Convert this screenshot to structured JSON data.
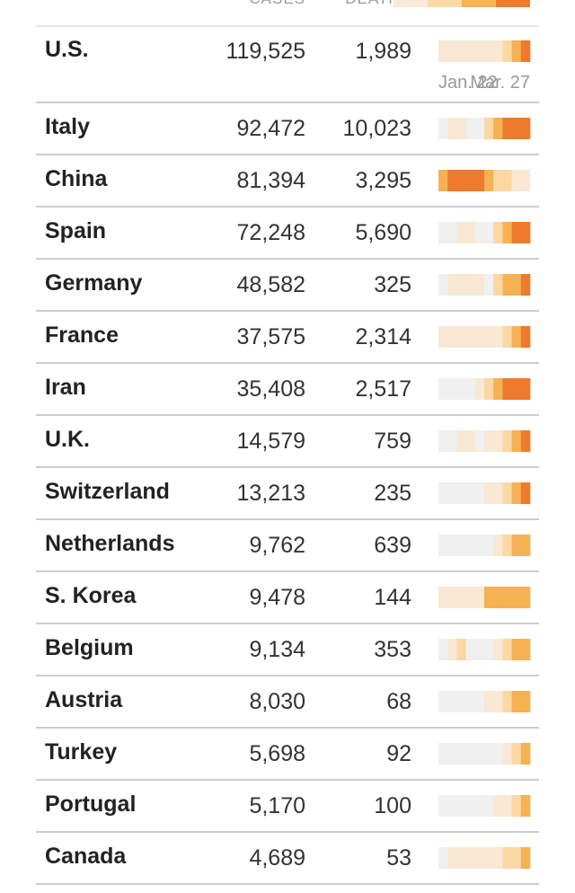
{
  "header": {
    "cases": "CASES",
    "deaths": "DEATHS"
  },
  "date_axis": {
    "start": "Jan. 22",
    "end": "Mar. 27"
  },
  "table": {
    "rows": [
      {
        "country": "U.S.",
        "cases": "119,525",
        "deaths": "1,989",
        "trend": [
          1,
          1,
          1,
          1,
          1,
          1,
          1,
          2,
          3,
          4
        ]
      },
      {
        "country": "Italy",
        "cases": "92,472",
        "deaths": "10,023",
        "trend": [
          0,
          1,
          1,
          0,
          0,
          2,
          3,
          4,
          4,
          4
        ]
      },
      {
        "country": "China",
        "cases": "81,394",
        "deaths": "3,295",
        "trend": [
          3,
          4,
          4,
          4,
          4,
          3,
          2,
          2,
          1,
          1
        ]
      },
      {
        "country": "Spain",
        "cases": "72,248",
        "deaths": "5,690",
        "trend": [
          0,
          0,
          1,
          1,
          0,
          0,
          2,
          3,
          4,
          4
        ]
      },
      {
        "country": "Germany",
        "cases": "48,582",
        "deaths": "325",
        "trend": [
          0,
          1,
          1,
          1,
          1,
          0,
          2,
          3,
          3,
          4
        ]
      },
      {
        "country": "France",
        "cases": "37,575",
        "deaths": "2,314",
        "trend": [
          1,
          1,
          1,
          1,
          1,
          1,
          1,
          2,
          3,
          4
        ]
      },
      {
        "country": "Iran",
        "cases": "35,408",
        "deaths": "2,517",
        "trend": [
          0,
          0,
          0,
          0,
          1,
          2,
          3,
          4,
          4,
          4
        ]
      },
      {
        "country": "U.K.",
        "cases": "14,579",
        "deaths": "759",
        "trend": [
          0,
          0,
          1,
          1,
          0,
          1,
          1,
          2,
          3,
          4
        ]
      },
      {
        "country": "Switzerland",
        "cases": "13,213",
        "deaths": "235",
        "trend": [
          0,
          0,
          0,
          0,
          0,
          1,
          1,
          2,
          3,
          4
        ]
      },
      {
        "country": "Netherlands",
        "cases": "9,762",
        "deaths": "639",
        "trend": [
          0,
          0,
          0,
          0,
          0,
          0,
          1,
          2,
          3,
          3
        ]
      },
      {
        "country": "S. Korea",
        "cases": "9,478",
        "deaths": "144",
        "trend": [
          1,
          1,
          1,
          1,
          1,
          3,
          3,
          3,
          3,
          3
        ]
      },
      {
        "country": "Belgium",
        "cases": "9,134",
        "deaths": "353",
        "trend": [
          0,
          1,
          2,
          0,
          0,
          0,
          1,
          2,
          3,
          3
        ]
      },
      {
        "country": "Austria",
        "cases": "8,030",
        "deaths": "68",
        "trend": [
          0,
          0,
          0,
          0,
          0,
          1,
          1,
          2,
          3,
          3
        ]
      },
      {
        "country": "Turkey",
        "cases": "5,698",
        "deaths": "92",
        "trend": [
          0,
          0,
          0,
          0,
          0,
          0,
          0,
          1,
          2,
          3
        ]
      },
      {
        "country": "Portugal",
        "cases": "5,170",
        "deaths": "100",
        "trend": [
          0,
          0,
          0,
          0,
          0,
          0,
          1,
          1,
          2,
          3
        ]
      },
      {
        "country": "Canada",
        "cases": "4,689",
        "deaths": "53",
        "trend": [
          0,
          1,
          1,
          1,
          1,
          1,
          1,
          2,
          2,
          3
        ]
      }
    ]
  }
}
